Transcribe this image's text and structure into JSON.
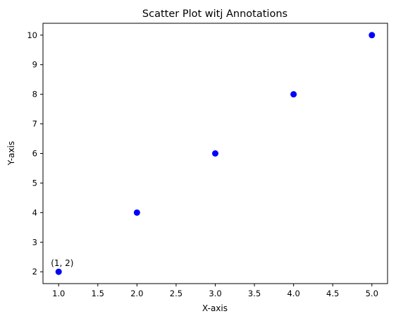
{
  "chart_data": {
    "type": "scatter",
    "title": "Scatter Plot witj Annotations",
    "xlabel": "X-axis",
    "ylabel": "Y-axis",
    "xlim": [
      0.8,
      5.2
    ],
    "ylim": [
      1.6,
      10.4
    ],
    "xticks": [
      1.0,
      1.5,
      2.0,
      2.5,
      3.0,
      3.5,
      4.0,
      4.5,
      5.0
    ],
    "xtick_labels": [
      "1.0",
      "1.5",
      "2.0",
      "2.5",
      "3.0",
      "3.5",
      "4.0",
      "4.5",
      "5.0"
    ],
    "yticks": [
      2,
      3,
      4,
      5,
      6,
      7,
      8,
      9,
      10
    ],
    "ytick_labels": [
      "2",
      "3",
      "4",
      "5",
      "6",
      "7",
      "8",
      "9",
      "10"
    ],
    "grid": false,
    "series": [
      {
        "color": "#0000ff",
        "x": [
          1,
          2,
          3,
          4,
          5
        ],
        "y": [
          2,
          4,
          6,
          8,
          10
        ]
      }
    ],
    "annotations": [
      {
        "text": "(1, 2)",
        "x": 1,
        "y": 2
      }
    ]
  }
}
